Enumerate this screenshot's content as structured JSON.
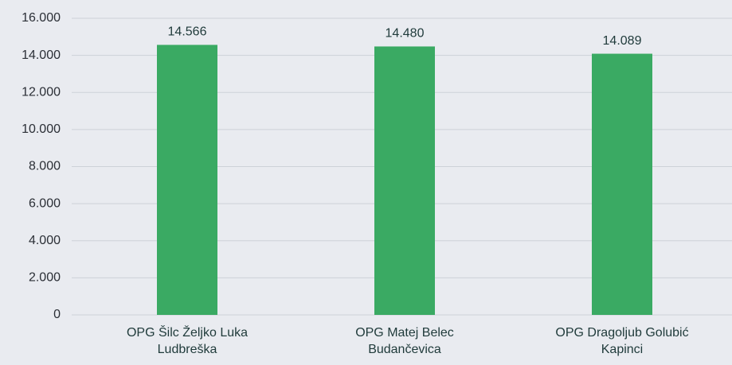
{
  "chart_data": {
    "type": "bar",
    "categories": [
      "OPG Šilc Željko Luka Ludbreška",
      "OPG Matej Belec Budančevica",
      "OPG Dragoljub Golubić Kapinci"
    ],
    "values": [
      14566,
      14480,
      14089
    ],
    "value_labels": [
      "14.566",
      "14.480",
      "14.089"
    ],
    "color": "#3aaa63",
    "ylim": [
      0,
      16000
    ],
    "yticks": [
      0,
      {
        "value": 2000,
        "label": "2.000"
      },
      {
        "value": 4000,
        "label": "4.000"
      },
      {
        "value": 6000,
        "label": "6.000"
      },
      {
        "value": 8000,
        "label": "8.000"
      },
      {
        "value": 10000,
        "label": "10.000"
      },
      {
        "value": 12000,
        "label": "12.000"
      },
      {
        "value": 14000,
        "label": "14.000"
      },
      {
        "value": 16000,
        "label": "16.000"
      }
    ],
    "grid": true
  }
}
